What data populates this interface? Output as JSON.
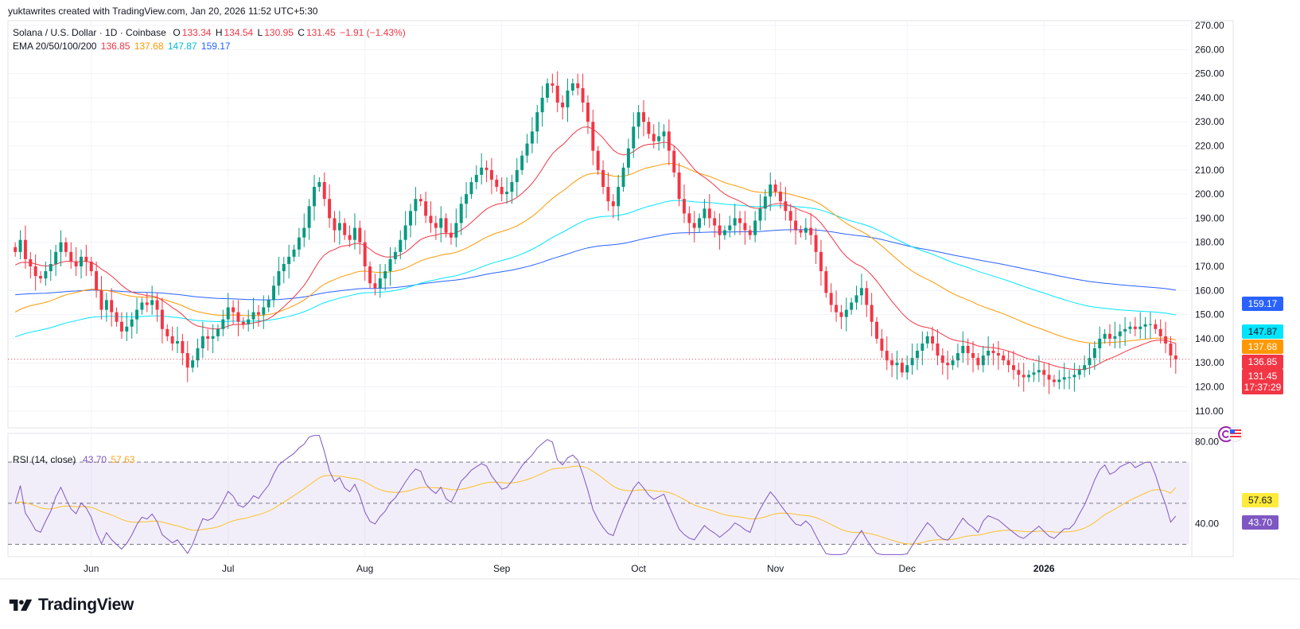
{
  "header": {
    "credit": "yuktawrites created with TradingView.com, Jan 20, 2026 11:52 UTC+5:30"
  },
  "legend": {
    "symbol": "Solana / U.S. Dollar · 1D · Coinbase",
    "open_label": "O",
    "open": "133.34",
    "high_label": "H",
    "high": "134.54",
    "low_label": "L",
    "low": "130.95",
    "close_label": "C",
    "close": "131.45",
    "change": "−1.91 (−1.43%)",
    "ema_label": "EMA 20/50/100/200",
    "ema20": "136.85",
    "ema50": "137.68",
    "ema100": "147.87",
    "ema200": "159.17",
    "rsi_label": "RSI (14, close)",
    "rsi_value": "43.70",
    "rsi_ma": "57.63"
  },
  "price_tags": {
    "ema200": "159.17",
    "ema100": "147.87",
    "ema50": "137.68",
    "ema20": "136.85",
    "last": "131.45",
    "countdown": "17:37:29"
  },
  "rsi_tags": {
    "ma": "57.63",
    "rsi": "43.70"
  },
  "brand": {
    "name": "TradingView"
  },
  "colors": {
    "up": "#089981",
    "down": "#f23645",
    "ema20": "#f23645",
    "ema50": "#ff9800",
    "ema100": "#00e5ff",
    "ema200": "#2962ff",
    "rsi": "#7e57c2",
    "rsi_ma": "#fbc02d",
    "grid": "#f0f3fa",
    "text": "#131722"
  },
  "chart_data": [
    {
      "type": "candlestick",
      "title": "Solana / U.S. Dollar · 1D · Coinbase",
      "ylim": [
        103,
        272
      ],
      "y_ticks": [
        110,
        120,
        130,
        140,
        150,
        160,
        170,
        180,
        190,
        200,
        210,
        220,
        230,
        240,
        250,
        260,
        270
      ],
      "x_labels": [
        "Jun",
        "Jul",
        "Aug",
        "Sep",
        "Oct",
        "Nov",
        "Dec",
        "2026"
      ],
      "close_series": [
        176,
        181,
        173,
        170,
        166,
        165,
        168,
        171,
        176,
        180,
        176,
        172,
        170,
        174,
        172,
        168,
        160,
        152,
        156,
        151,
        147,
        143,
        145,
        148,
        152,
        155,
        154,
        156,
        152,
        144,
        141,
        138,
        139,
        134,
        128,
        131,
        136,
        141,
        140,
        141,
        144,
        148,
        153,
        151,
        147,
        146,
        148,
        151,
        150,
        153,
        156,
        162,
        168,
        171,
        174,
        177,
        182,
        186,
        195,
        203,
        205,
        198,
        190,
        185,
        188,
        183,
        181,
        186,
        180,
        170,
        163,
        161,
        165,
        168,
        173,
        176,
        181,
        187,
        193,
        198,
        197,
        191,
        188,
        186,
        190,
        184,
        182,
        188,
        196,
        200,
        205,
        208,
        211,
        210,
        206,
        203,
        200,
        201,
        205,
        210,
        216,
        221,
        226,
        234,
        240,
        246,
        245,
        238,
        236,
        243,
        246,
        244,
        238,
        230,
        218,
        210,
        203,
        197,
        195,
        203,
        211,
        219,
        228,
        234,
        230,
        225,
        222,
        224,
        226,
        218,
        209,
        198,
        192,
        188,
        186,
        190,
        194,
        190,
        187,
        183,
        185,
        187,
        190,
        188,
        185,
        183,
        189,
        194,
        199,
        204,
        201,
        197,
        193,
        189,
        185,
        184,
        186,
        183,
        176,
        168,
        159,
        154,
        151,
        149,
        152,
        155,
        158,
        161,
        154,
        147,
        140,
        135,
        131,
        129,
        130,
        126,
        129,
        132,
        135,
        138,
        141,
        138,
        133,
        130,
        129,
        131,
        134,
        137,
        134,
        132,
        129,
        133,
        135,
        134,
        133,
        131,
        129,
        127,
        125,
        124,
        125,
        126,
        127,
        125,
        123,
        122,
        123,
        124,
        124,
        125,
        127,
        129,
        132,
        136,
        140,
        142,
        140,
        141,
        143,
        144,
        145,
        144,
        145,
        146,
        146,
        144,
        141,
        138,
        133,
        131.45
      ],
      "ema20": "136.85",
      "ema50": "137.68",
      "ema100": "147.87",
      "ema200": "159.17",
      "last_price": 131.45
    },
    {
      "type": "line",
      "title": "RSI (14, close)",
      "ylim": [
        24,
        84
      ],
      "y_ticks": [
        80,
        40
      ],
      "bands": [
        70,
        50,
        30
      ],
      "series": [
        {
          "name": "RSI",
          "last": 43.7
        },
        {
          "name": "RSI MA",
          "last": 57.63
        }
      ]
    }
  ]
}
